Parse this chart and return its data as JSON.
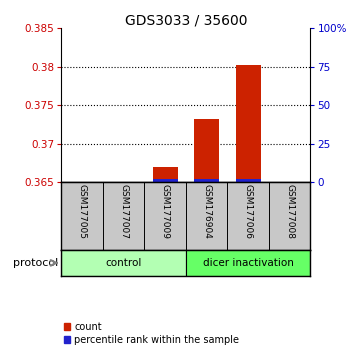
{
  "title": "GDS3033 / 35600",
  "samples": [
    "GSM177005",
    "GSM177007",
    "GSM177009",
    "GSM176904",
    "GSM177006",
    "GSM177008"
  ],
  "groups": [
    "control",
    "control",
    "control",
    "dicer inactivation",
    "dicer inactivation",
    "dicer inactivation"
  ],
  "group_colors": {
    "control": "#b3ffb3",
    "dicer inactivation": "#66ff66"
  },
  "ylim_left": [
    0.365,
    0.385
  ],
  "ylim_right": [
    0,
    100
  ],
  "yticks_left": [
    0.365,
    0.37,
    0.375,
    0.38,
    0.385
  ],
  "yticks_right": [
    0,
    25,
    50,
    75,
    100
  ],
  "ytick_labels_right": [
    "0",
    "25",
    "50",
    "75",
    "100%"
  ],
  "left_axis_color": "#cc0000",
  "right_axis_color": "#0000cc",
  "bar_color_red": "#cc2200",
  "bar_color_blue": "#2222cc",
  "count_values": [
    0.365,
    0.365,
    0.367,
    0.3732,
    0.3802,
    0.365
  ],
  "percentile_blue_heights": [
    0.0,
    0.0,
    0.0004,
    0.0004,
    0.0004,
    0.0
  ],
  "bar_width": 0.6,
  "blue_bar_width": 0.6,
  "protocol_label": "protocol",
  "legend_count": "count",
  "legend_percentile": "percentile rank within the sample",
  "background_plot": "#ffffff",
  "background_label": "#c8c8c8"
}
